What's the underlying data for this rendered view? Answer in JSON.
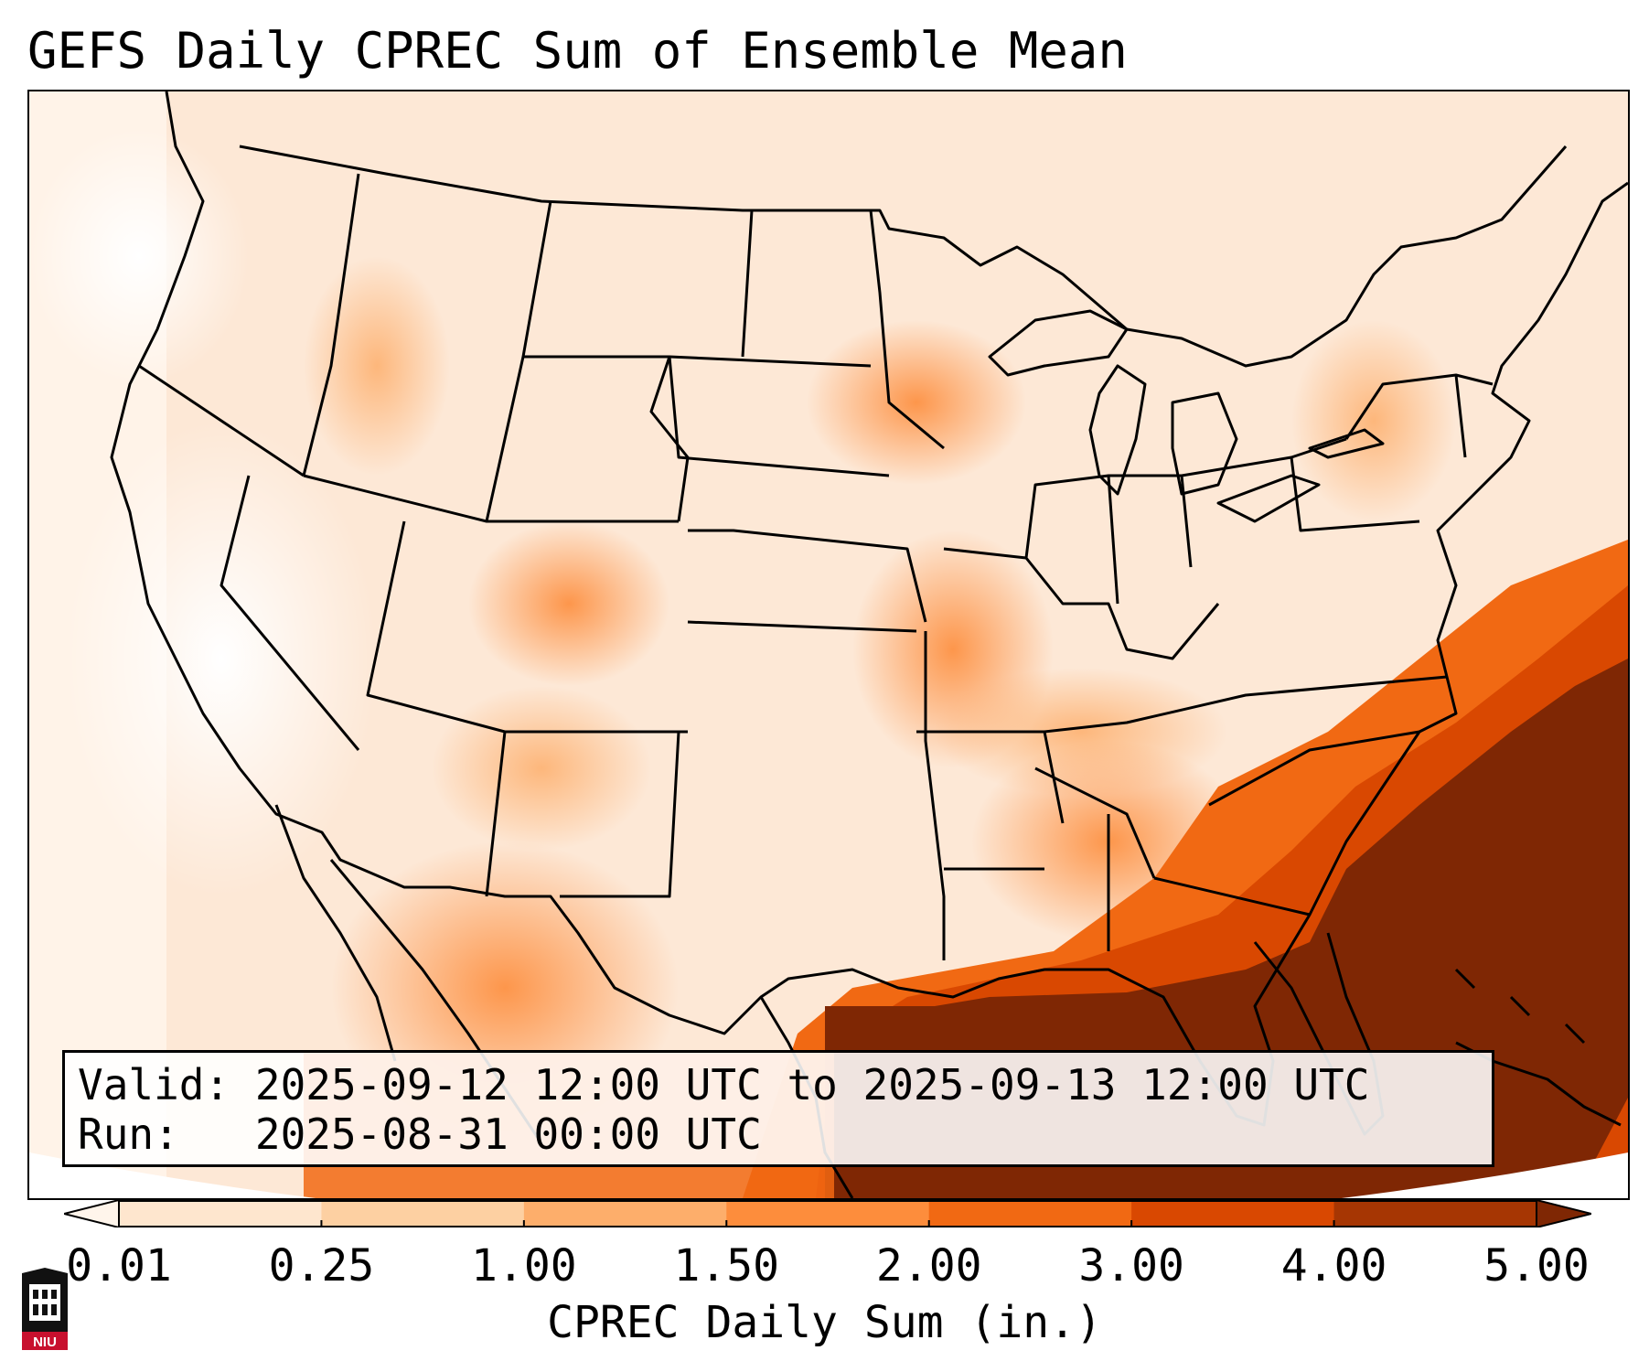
{
  "title": "GEFS Daily CPREC Sum of Ensemble Mean",
  "info_box": {
    "valid_label": "Valid:",
    "valid_value": "2025-09-12 12:00 UTC to 2025-09-13 12:00 UTC",
    "run_label": "Run:",
    "run_value": "2025-08-31 00:00 UTC"
  },
  "colorbar": {
    "label": "CPREC Daily Sum (in.)",
    "ticks": [
      "0.01",
      "0.25",
      "1.00",
      "1.50",
      "2.00",
      "3.00",
      "4.00",
      "5.00"
    ],
    "colors": [
      "#fff5eb",
      "#fee6ce",
      "#fdd0a2",
      "#fdae6b",
      "#fd8d3c",
      "#f16913",
      "#d94801",
      "#a63603",
      "#7f2704"
    ]
  },
  "logo": {
    "text": "NIU",
    "icon": "niu-university-logo-icon"
  }
}
